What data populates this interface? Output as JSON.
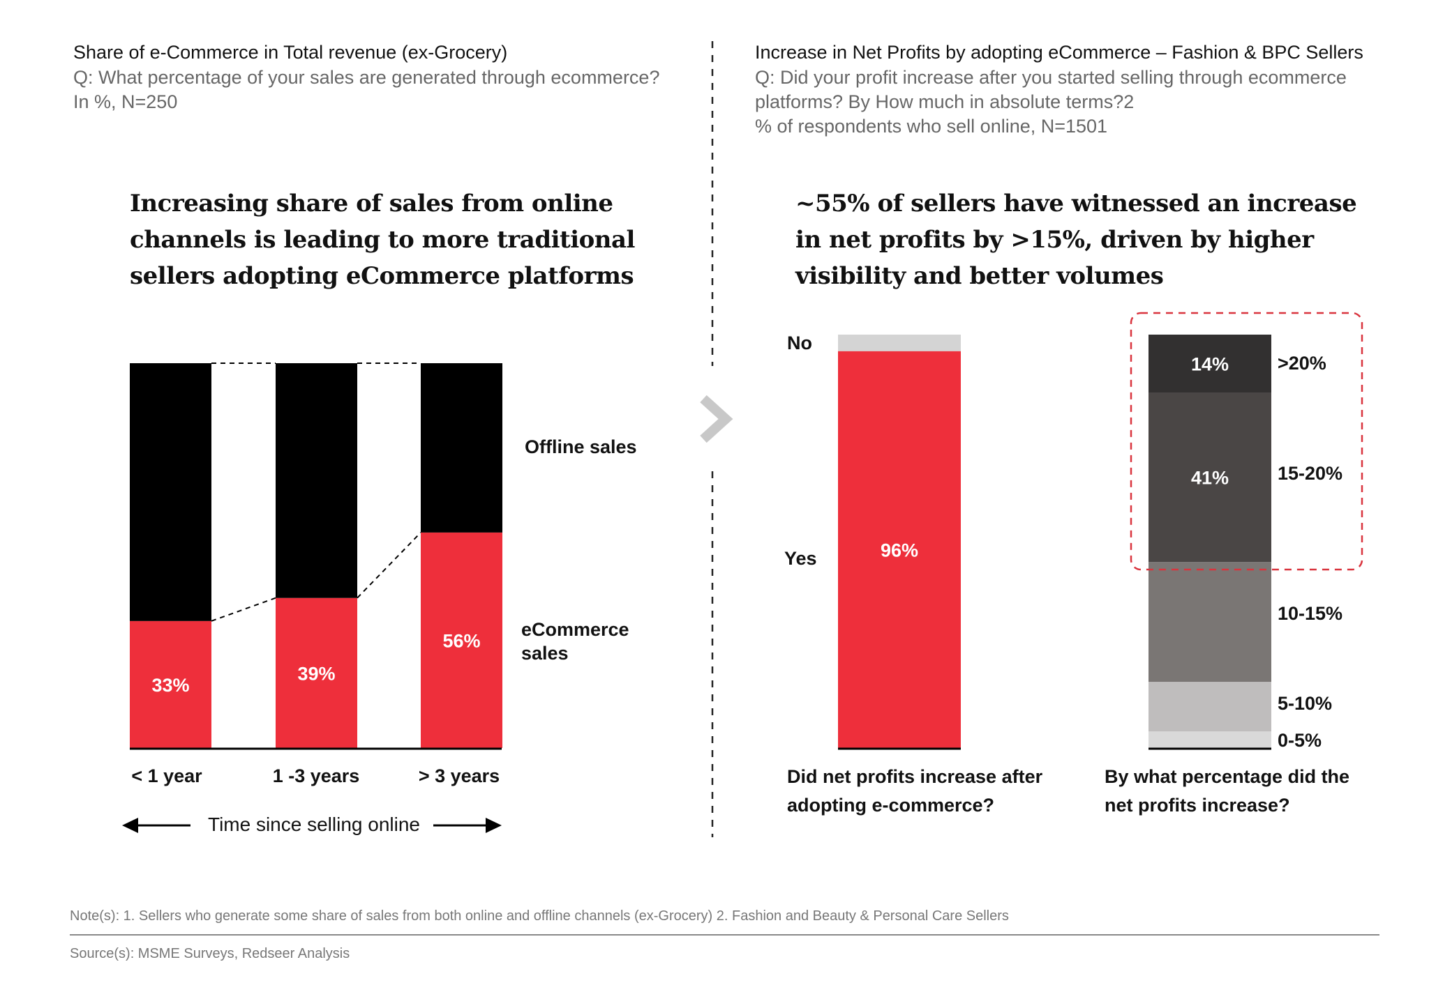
{
  "left": {
    "title": "Share of e-Commerce in Total revenue (ex-Grocery)",
    "question": "Q: What percentage of your sales are generated through ecommerce?",
    "meta": "In %, N=250",
    "headline": [
      "Increasing share of sales from online",
      "channels is leading to more traditional",
      "sellers adopting eCommerce platforms"
    ],
    "offline_label": "Offline sales",
    "ecommerce_label": [
      "eCommerce",
      "sales"
    ],
    "axis_label": "Time since selling online"
  },
  "right": {
    "title": "Increase in Net Profits by adopting eCommerce – Fashion & BPC Sellers",
    "question": [
      "Q: Did your profit increase after you started selling through ecommerce",
      "platforms? By How much in absolute terms?2"
    ],
    "meta": "% of respondents who sell online, N=1501",
    "headline": [
      "~55% of sellers have witnessed an increase",
      "in net profits by >15%, driven by higher",
      "visibility and better volumes"
    ],
    "caption1": [
      "Did net profits increase after",
      "adopting e-commerce?"
    ],
    "caption2": [
      "By what percentage did the",
      "net profits increase?"
    ]
  },
  "chart_data": [
    {
      "type": "bar",
      "stacked": true,
      "categories": [
        "< 1 year",
        "1 -3 years",
        "> 3 years"
      ],
      "series": [
        {
          "name": "eCommerce sales",
          "values": [
            33,
            39,
            56
          ],
          "color": "#ee2f3b"
        },
        {
          "name": "Offline sales",
          "values": [
            67,
            61,
            44
          ],
          "color": "#000000"
        }
      ],
      "data_labels": [
        "33%",
        "39%",
        "56%"
      ],
      "ylim": [
        0,
        100
      ]
    },
    {
      "type": "bar",
      "stacked": true,
      "categories": [
        "Did net profits increase after adopting e-commerce?"
      ],
      "series": [
        {
          "name": "Yes",
          "values": [
            96
          ],
          "color": "#ee2f3b",
          "label": "96%"
        },
        {
          "name": "No",
          "values": [
            4
          ],
          "color": "#d4d4d4",
          "label": ""
        }
      ],
      "ylim": [
        0,
        100
      ]
    },
    {
      "type": "bar",
      "stacked": true,
      "categories": [
        "By what percentage did the net profits increase?"
      ],
      "series": [
        {
          "name": "0-5%",
          "values": [
            4
          ],
          "color": "#d9d9d9",
          "label": ""
        },
        {
          "name": "5-10%",
          "values": [
            12
          ],
          "color": "#bfbdbd",
          "label": ""
        },
        {
          "name": "10-15%",
          "values": [
            29
          ],
          "color": "#7a7674",
          "label": ""
        },
        {
          "name": "15-20%",
          "values": [
            41
          ],
          "color": "#4a4645",
          "label": "41%"
        },
        {
          "name": ">20%",
          "values": [
            14
          ],
          "color": "#323030",
          "label": "14%"
        }
      ],
      "highlight": [
        "15-20%",
        ">20%"
      ],
      "ylim": [
        0,
        100
      ]
    }
  ],
  "footer": {
    "note": "Note(s): 1. Sellers who generate some share of sales from both online and offline channels (ex-Grocery) 2. Fashion and Beauty & Personal Care Sellers",
    "source": "Source(s): MSME Surveys, Redseer Analysis"
  },
  "colors": {
    "accent": "#ee2f3b",
    "divider": "#222222"
  }
}
